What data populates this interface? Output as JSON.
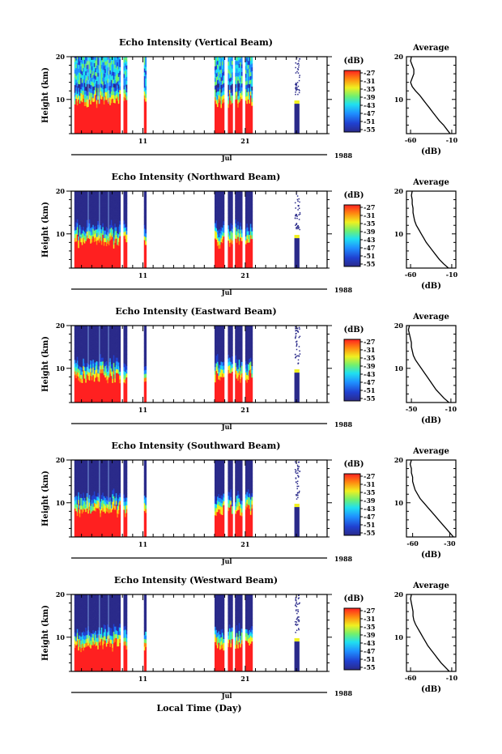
{
  "figure": {
    "x_axis_label": "Local Time (Day)",
    "month_label": "Jul",
    "year_label": "1988",
    "colorbar_unit": "(dB)",
    "colorbar_ticks": [
      "-27",
      "-31",
      "-35",
      "-39",
      "-43",
      "-47",
      "-51",
      "-55"
    ],
    "avg_title": "Average",
    "avg_xlabel": "(dB)"
  },
  "chart_data": [
    {
      "type": "heatmap",
      "title": "Echo Intensity (Vertical Beam)",
      "ylabel": "Height (km)",
      "x_ticks": [
        "11",
        "21"
      ],
      "y_ticks": [
        "20",
        "10"
      ],
      "ylim": [
        2,
        20
      ],
      "xlim": [
        4,
        29
      ],
      "color_range_db": [
        -55,
        -27
      ],
      "data_segments_day": [
        [
          4.3,
          8.7
        ],
        [
          9.1,
          9.4
        ],
        [
          11.1,
          11.3
        ],
        [
          18.0,
          18.9
        ],
        [
          19.3,
          19.7
        ],
        [
          20.0,
          20.6
        ],
        [
          21.0,
          21.6
        ],
        [
          25.8,
          26.3
        ]
      ],
      "average_profile": {
        "title": "Average",
        "xlabel": "(dB)",
        "x_ticks": [
          "-60",
          "-10"
        ],
        "y_ticks": [
          "20",
          "10"
        ],
        "xlim": [
          -65,
          -5
        ],
        "ylim": [
          2,
          20
        ],
        "height_km": [
          2,
          3,
          4,
          5,
          6,
          7,
          8,
          9,
          10,
          11,
          12,
          13,
          14,
          15,
          16,
          17,
          18,
          19,
          20
        ],
        "db": [
          -12,
          -16,
          -20,
          -25,
          -29,
          -33,
          -37,
          -41,
          -45,
          -49,
          -54,
          -58,
          -60,
          -58,
          -56,
          -56,
          -58,
          -60,
          -59
        ]
      }
    },
    {
      "type": "heatmap",
      "title": "Echo Intensity (Northward Beam)",
      "ylabel": "Height (km)",
      "x_ticks": [
        "11",
        "21"
      ],
      "y_ticks": [
        "20",
        "10"
      ],
      "ylim": [
        2,
        20
      ],
      "xlim": [
        4,
        29
      ],
      "color_range_db": [
        -55,
        -27
      ],
      "data_segments_day": [
        [
          4.3,
          8.7
        ],
        [
          9.1,
          9.4
        ],
        [
          11.1,
          11.3
        ],
        [
          18.0,
          18.9
        ],
        [
          19.3,
          19.7
        ],
        [
          20.0,
          20.6
        ],
        [
          21.0,
          21.6
        ],
        [
          25.8,
          26.3
        ]
      ],
      "average_profile": {
        "title": "Average",
        "xlabel": "(dB)",
        "x_ticks": [
          "-60",
          "-10"
        ],
        "y_ticks": [
          "20",
          "10"
        ],
        "xlim": [
          -65,
          -5
        ],
        "ylim": [
          2,
          20
        ],
        "height_km": [
          2,
          3,
          4,
          5,
          6,
          7,
          8,
          9,
          10,
          11,
          12,
          13,
          14,
          15,
          16,
          17,
          18,
          19,
          20
        ],
        "db": [
          -14,
          -20,
          -25,
          -29,
          -33,
          -37,
          -41,
          -44,
          -47,
          -50,
          -53,
          -55,
          -56,
          -57,
          -57,
          -58,
          -58,
          -59,
          -58
        ]
      }
    },
    {
      "type": "heatmap",
      "title": "Echo Intensity (Eastward Beam)",
      "ylabel": "Height (km)",
      "x_ticks": [
        "11",
        "21"
      ],
      "y_ticks": [
        "20",
        "10"
      ],
      "ylim": [
        2,
        20
      ],
      "xlim": [
        4,
        29
      ],
      "color_range_db": [
        -55,
        -27
      ],
      "data_segments_day": [
        [
          4.3,
          8.7
        ],
        [
          9.1,
          9.4
        ],
        [
          11.1,
          11.3
        ],
        [
          18.0,
          18.9
        ],
        [
          19.3,
          19.7
        ],
        [
          20.0,
          20.6
        ],
        [
          21.0,
          21.6
        ],
        [
          25.8,
          26.3
        ]
      ],
      "average_profile": {
        "title": "Average",
        "xlabel": "(dB)",
        "x_ticks": [
          "-50",
          "-10"
        ],
        "y_ticks": [
          "20",
          "10"
        ],
        "xlim": [
          -55,
          -5
        ],
        "ylim": [
          2,
          20
        ],
        "height_km": [
          2,
          3,
          4,
          5,
          6,
          7,
          8,
          9,
          10,
          11,
          12,
          13,
          14,
          15,
          16,
          17,
          18,
          19,
          20
        ],
        "db": [
          -12,
          -17,
          -21,
          -25,
          -28,
          -31,
          -34,
          -37,
          -40,
          -43,
          -46,
          -48,
          -49,
          -50,
          -50,
          -51,
          -52,
          -53,
          -52
        ]
      }
    },
    {
      "type": "heatmap",
      "title": "Echo Intensity (Southward Beam)",
      "ylabel": "Height (km)",
      "x_ticks": [
        "11",
        "21"
      ],
      "y_ticks": [
        "20",
        "10"
      ],
      "ylim": [
        2,
        20
      ],
      "xlim": [
        4,
        29
      ],
      "color_range_db": [
        -55,
        -27
      ],
      "data_segments_day": [
        [
          4.3,
          8.7
        ],
        [
          9.1,
          9.4
        ],
        [
          11.1,
          11.3
        ],
        [
          18.0,
          18.9
        ],
        [
          19.3,
          19.7
        ],
        [
          20.0,
          20.6
        ],
        [
          21.0,
          21.6
        ],
        [
          25.8,
          26.3
        ]
      ],
      "average_profile": {
        "title": "Average",
        "xlabel": "(dB)",
        "x_ticks": [
          "-60",
          "-30"
        ],
        "y_ticks": [
          "20",
          "10"
        ],
        "xlim": [
          -65,
          -25
        ],
        "ylim": [
          2,
          20
        ],
        "height_km": [
          2,
          3,
          4,
          5,
          6,
          7,
          8,
          9,
          10,
          11,
          12,
          13,
          14,
          15,
          16,
          17,
          18,
          19,
          20
        ],
        "db": [
          -27,
          -30,
          -33,
          -36,
          -39,
          -42,
          -45,
          -48,
          -51,
          -54,
          -56,
          -58,
          -59,
          -60,
          -60,
          -61,
          -61,
          -62,
          -61
        ]
      }
    },
    {
      "type": "heatmap",
      "title": "Echo Intensity (Westward Beam)",
      "ylabel": "Height (km)",
      "x_ticks": [
        "11",
        "21"
      ],
      "y_ticks": [
        "20",
        "10"
      ],
      "ylim": [
        2,
        20
      ],
      "xlim": [
        4,
        29
      ],
      "color_range_db": [
        -55,
        -27
      ],
      "data_segments_day": [
        [
          4.3,
          8.7
        ],
        [
          9.1,
          9.4
        ],
        [
          11.1,
          11.3
        ],
        [
          18.0,
          18.9
        ],
        [
          19.3,
          19.7
        ],
        [
          20.0,
          20.6
        ],
        [
          21.0,
          21.6
        ],
        [
          25.8,
          26.3
        ]
      ],
      "average_profile": {
        "title": "Average",
        "xlabel": "(dB)",
        "x_ticks": [
          "-60",
          "-10"
        ],
        "y_ticks": [
          "20",
          "10"
        ],
        "xlim": [
          -65,
          -5
        ],
        "ylim": [
          2,
          20
        ],
        "height_km": [
          2,
          3,
          4,
          5,
          6,
          7,
          8,
          9,
          10,
          11,
          12,
          13,
          14,
          15,
          16,
          17,
          18,
          19,
          20
        ],
        "db": [
          -13,
          -18,
          -23,
          -27,
          -31,
          -35,
          -39,
          -42,
          -45,
          -48,
          -51,
          -54,
          -56,
          -57,
          -57,
          -58,
          -59,
          -60,
          -59
        ]
      }
    }
  ]
}
